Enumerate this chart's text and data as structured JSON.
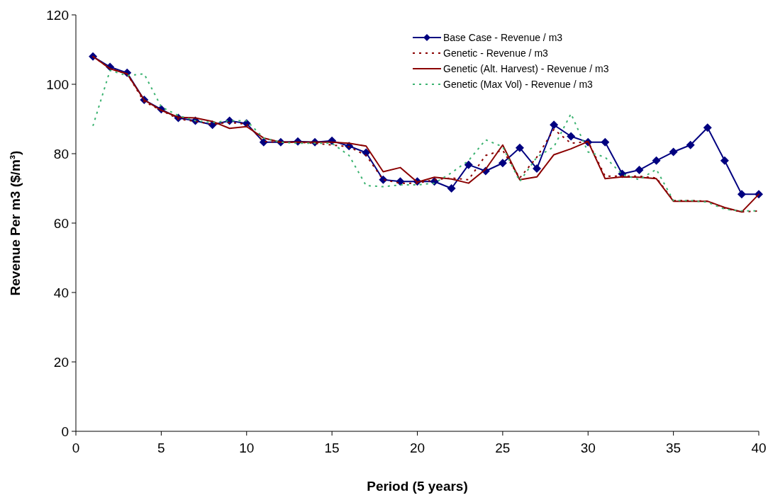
{
  "chart_data": {
    "type": "line",
    "xlabel": "Period (5 years)",
    "ylabel": "Revenue Per m3 ($/m³)",
    "x": [
      1,
      2,
      3,
      4,
      5,
      6,
      7,
      8,
      9,
      10,
      11,
      12,
      13,
      14,
      15,
      16,
      17,
      18,
      19,
      20,
      21,
      22,
      23,
      24,
      25,
      26,
      27,
      28,
      29,
      30,
      31,
      32,
      33,
      34,
      35,
      36,
      37,
      38,
      39,
      40
    ],
    "xlim": [
      0,
      40
    ],
    "xticks": [
      0,
      5,
      10,
      15,
      20,
      25,
      30,
      35,
      40
    ],
    "ylim": [
      0,
      120
    ],
    "yticks": [
      0,
      20,
      40,
      60,
      80,
      100,
      120
    ],
    "grid": false,
    "legend": "top right",
    "series": [
      {
        "name": "Base Case  - Revenue / m3",
        "color": "#000080",
        "marker": "diamond",
        "line_style": "solid",
        "values": [
          108,
          105,
          103.3,
          95.5,
          92.8,
          90.3,
          89.5,
          88.3,
          89.5,
          88.7,
          83.3,
          83.3,
          83.5,
          83.3,
          83.7,
          82.2,
          80.3,
          72.5,
          72,
          72,
          72,
          70,
          76.8,
          75,
          77.3,
          81.7,
          75.7,
          88.3,
          85,
          83.3,
          83.3,
          74.2,
          75.3,
          78,
          80.5,
          82.5,
          87.5,
          78,
          68.3,
          68.3
        ]
      },
      {
        "name": "Genetic  - Revenue / m3",
        "color": "#8b0000",
        "marker": "none",
        "line_style": "dotted",
        "values": [
          108,
          104.5,
          103,
          95,
          92.5,
          90,
          89.3,
          88.5,
          89,
          88.5,
          83.5,
          83.3,
          83.3,
          83,
          82.5,
          82,
          79.5,
          72.5,
          71.5,
          71.5,
          72.5,
          73,
          72.5,
          79.5,
          81,
          73,
          79,
          87,
          83,
          83.5,
          73.5,
          73.5,
          73.5,
          73,
          66.5,
          66.5,
          66.3,
          64.3,
          63.2,
          63.5
        ]
      },
      {
        "name": "Genetic (Alt. Harvest)  - Revenue / m3",
        "color": "#8b0000",
        "marker": "none",
        "line_style": "solid",
        "values": [
          108,
          104.5,
          103,
          95.5,
          92.5,
          90.5,
          90.3,
          89.3,
          87.3,
          87.8,
          84.5,
          83.3,
          83.3,
          83.3,
          83.3,
          83,
          82.2,
          74.8,
          76,
          71.8,
          73.2,
          72.7,
          71.5,
          75.5,
          82.5,
          72.5,
          73.3,
          79.7,
          81.4,
          83.5,
          72.8,
          73.3,
          73.2,
          72.8,
          66.3,
          66.3,
          66.3,
          64.5,
          63.2,
          68.3
        ]
      },
      {
        "name": "Genetic (Max Vol)  - Revenue / m3",
        "color": "#3cb371",
        "marker": "none",
        "line_style": "dotted",
        "values": [
          88,
          104,
          102.5,
          103,
          93.5,
          91,
          89.5,
          89,
          89.5,
          89.5,
          84.5,
          83.3,
          83,
          83,
          83,
          79.5,
          70.8,
          70.5,
          71,
          71,
          71.5,
          74.5,
          78,
          84,
          82,
          72,
          79,
          82,
          91.5,
          80.5,
          79,
          74,
          72.5,
          75.5,
          66.5,
          66.5,
          66,
          64,
          63.5,
          63.5
        ]
      }
    ]
  }
}
